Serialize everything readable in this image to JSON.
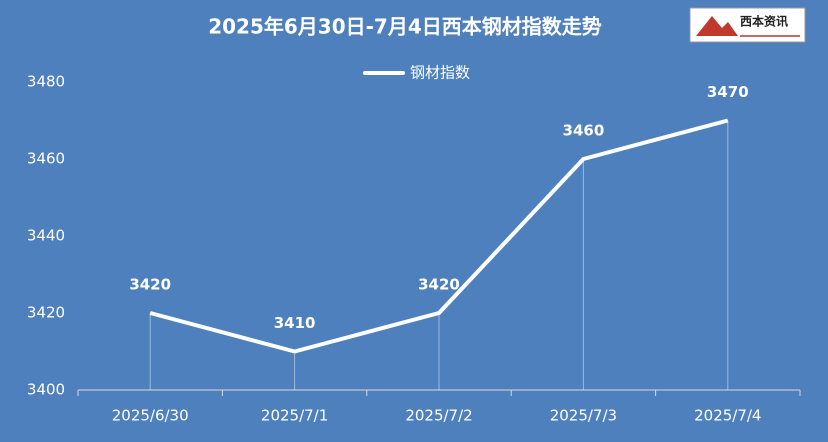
{
  "chart_data": {
    "type": "line",
    "title": "2025年6月30日-7月4日西本钢材指数走势",
    "logo_text": "西本资讯",
    "categories": [
      "2025/6/30",
      "2025/7/1",
      "2025/7/2",
      "2025/7/3",
      "2025/7/4"
    ],
    "series": [
      {
        "name": "钢材指数",
        "color": "#ffffff",
        "values": [
          3420,
          3410,
          3420,
          3460,
          3470
        ]
      }
    ],
    "ylim": [
      3400,
      3480
    ],
    "yticks": [
      3400,
      3420,
      3440,
      3460,
      3480
    ],
    "data_labels": true,
    "drop_lines": true,
    "legend": "top"
  }
}
